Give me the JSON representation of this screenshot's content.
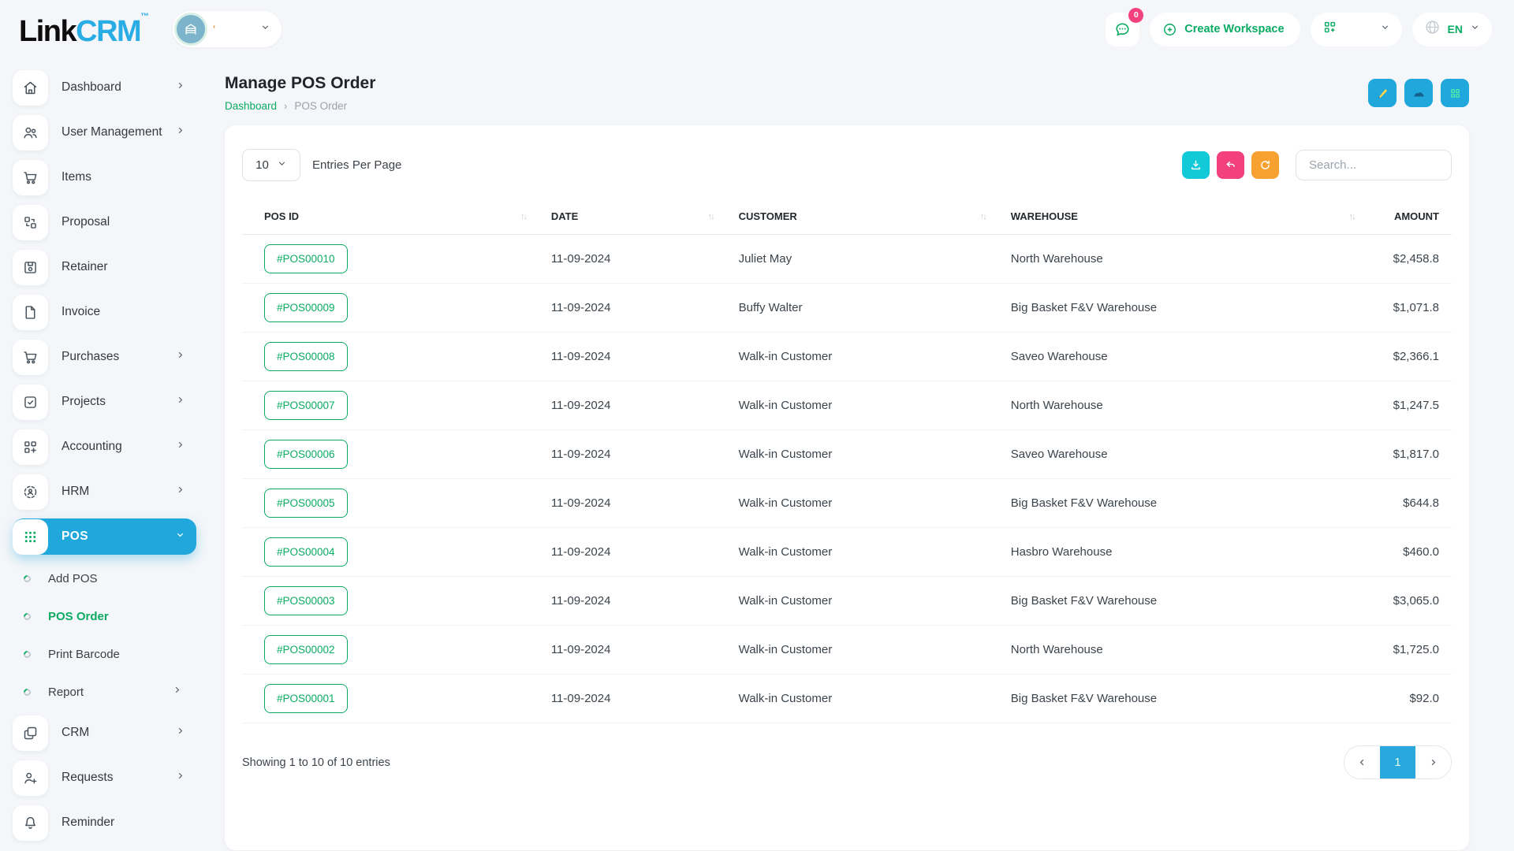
{
  "brand": {
    "name_primary": "Link",
    "name_secondary": "CRM",
    "trademark": "TM"
  },
  "topbar": {
    "workspace": {
      "label": "'",
      "icon": "building"
    },
    "messages_badge": "0",
    "create_workspace_label": "Create Workspace",
    "language_code": "EN"
  },
  "sidebar": {
    "items": [
      {
        "label": "Dashboard",
        "icon": "home",
        "chevron": "right"
      },
      {
        "label": "User Management",
        "icon": "users",
        "chevron": "right"
      },
      {
        "label": "Items",
        "icon": "cart"
      },
      {
        "label": "Proposal",
        "icon": "proposal"
      },
      {
        "label": "Retainer",
        "icon": "retainer"
      },
      {
        "label": "Invoice",
        "icon": "invoice"
      },
      {
        "label": "Purchases",
        "icon": "cart",
        "chevron": "right"
      },
      {
        "label": "Projects",
        "icon": "projects",
        "chevron": "right"
      },
      {
        "label": "Accounting",
        "icon": "accounting",
        "chevron": "right"
      },
      {
        "label": "HRM",
        "icon": "hrm",
        "chevron": "right"
      },
      {
        "label": "POS",
        "icon": "pos",
        "chevron": "down",
        "active": true
      },
      {
        "label": "Add POS",
        "type": "sub"
      },
      {
        "label": "POS Order",
        "type": "sub",
        "active": true
      },
      {
        "label": "Print Barcode",
        "type": "sub"
      },
      {
        "label": "Report",
        "type": "sub",
        "chevron": "right"
      },
      {
        "label": "CRM",
        "icon": "crm",
        "chevron": "right"
      },
      {
        "label": "Requests",
        "icon": "user-plus",
        "chevron": "right"
      },
      {
        "label": "Reminder",
        "icon": "bell"
      }
    ]
  },
  "page": {
    "title": "Manage POS Order",
    "breadcrumb": [
      "Dashboard",
      "POS Order"
    ],
    "breadcrumb_separator": "›"
  },
  "controls": {
    "entries_per_page_value": "10",
    "entries_per_page_label": "Entries Per Page",
    "search_placeholder": "Search..."
  },
  "table": {
    "columns": [
      {
        "label": "POS ID",
        "sortable": true
      },
      {
        "label": "DATE",
        "sortable": true
      },
      {
        "label": "CUSTOMER",
        "sortable": true
      },
      {
        "label": "WAREHOUSE",
        "sortable": true
      },
      {
        "label": "AMOUNT",
        "sortable": false,
        "align": "right"
      }
    ],
    "rows": [
      {
        "pos_id": "#POS00010",
        "date": "11-09-2024",
        "customer": "Juliet May",
        "warehouse": "North Warehouse",
        "amount": "$2,458.8"
      },
      {
        "pos_id": "#POS00009",
        "date": "11-09-2024",
        "customer": "Buffy Walter",
        "warehouse": "Big Basket F&V Warehouse",
        "amount": "$1,071.8"
      },
      {
        "pos_id": "#POS00008",
        "date": "11-09-2024",
        "customer": "Walk-in Customer",
        "warehouse": "Saveo Warehouse",
        "amount": "$2,366.1"
      },
      {
        "pos_id": "#POS00007",
        "date": "11-09-2024",
        "customer": "Walk-in Customer",
        "warehouse": "North Warehouse",
        "amount": "$1,247.5"
      },
      {
        "pos_id": "#POS00006",
        "date": "11-09-2024",
        "customer": "Walk-in Customer",
        "warehouse": "Saveo Warehouse",
        "amount": "$1,817.0"
      },
      {
        "pos_id": "#POS00005",
        "date": "11-09-2024",
        "customer": "Walk-in Customer",
        "warehouse": "Big Basket F&V Warehouse",
        "amount": "$644.8"
      },
      {
        "pos_id": "#POS00004",
        "date": "11-09-2024",
        "customer": "Walk-in Customer",
        "warehouse": "Hasbro Warehouse",
        "amount": "$460.0"
      },
      {
        "pos_id": "#POS00003",
        "date": "11-09-2024",
        "customer": "Walk-in Customer",
        "warehouse": "Big Basket F&V Warehouse",
        "amount": "$3,065.0"
      },
      {
        "pos_id": "#POS00002",
        "date": "11-09-2024",
        "customer": "Walk-in Customer",
        "warehouse": "North Warehouse",
        "amount": "$1,725.0"
      },
      {
        "pos_id": "#POS00001",
        "date": "11-09-2024",
        "customer": "Walk-in Customer",
        "warehouse": "Big Basket F&V Warehouse",
        "amount": "$92.0"
      }
    ]
  },
  "footer": {
    "showing_text": "Showing 1 to 10 of 10 entries",
    "current_page": "1"
  },
  "colors": {
    "accent_green": "#0aab62",
    "accent_blue": "#20a7dc",
    "logo_blue": "#2aace4",
    "button_cyan": "#12c9d8",
    "button_pink": "#f2417c",
    "button_orange": "#f7a230",
    "page_background": "#f4f6f9"
  }
}
